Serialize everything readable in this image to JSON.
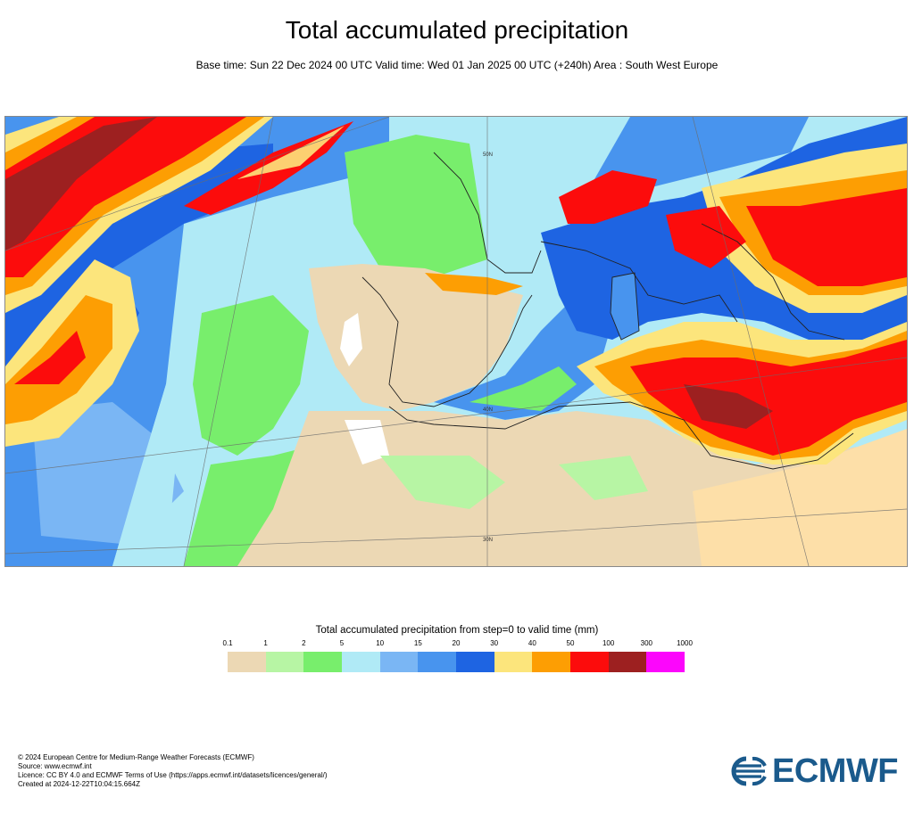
{
  "header": {
    "title": "Total accumulated precipitation",
    "subtitle": "Base time: Sun 22 Dec 2024 00 UTC Valid time: Wed 01 Jan 2025 00 UTC (+240h) Area : South West Europe"
  },
  "map": {
    "area": "South West Europe",
    "lat_labels": [
      "30N",
      "40N",
      "50N"
    ]
  },
  "legend": {
    "title": "Total accumulated precipitation from step=0 to valid time (mm)",
    "ticks": [
      "0.1",
      "1",
      "2",
      "5",
      "10",
      "15",
      "20",
      "30",
      "40",
      "50",
      "100",
      "300",
      "1000"
    ],
    "colors": [
      "#ecd8b4",
      "#b7f5a4",
      "#78ee6c",
      "#b0eaf6",
      "#7ab6f4",
      "#4894ee",
      "#1e64e2",
      "#fce57c",
      "#fd9e03",
      "#fc0c0c",
      "#9d2020",
      "#fc06fc"
    ]
  },
  "footer": {
    "lines": [
      "© 2024 European Centre for Medium-Range Weather Forecasts (ECMWF)",
      "Source: www.ecmwf.int",
      "Licence: CC BY 4.0 and ECMWF Terms of Use (https://apps.ecmwf.int/datasets/licences/general/)",
      "Created at 2024-12-22T10:04:15.664Z"
    ]
  },
  "logo": {
    "text": "ECMWF",
    "color": "#1a5a8c"
  }
}
